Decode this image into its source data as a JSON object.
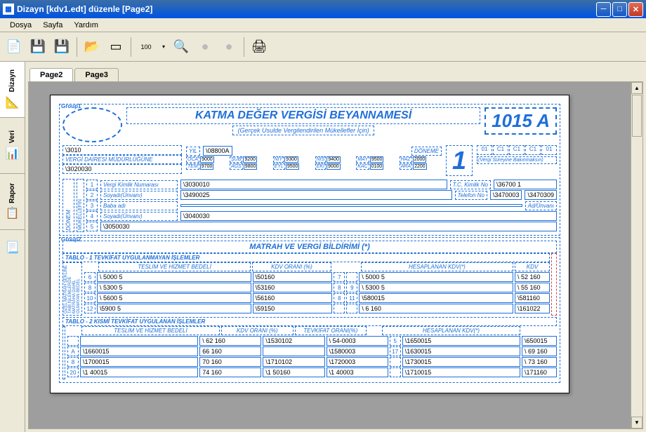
{
  "window": {
    "title": "Dizayn   [kdv1.edt]   düzenle [Page2]"
  },
  "menu": {
    "dosya": "Dosya",
    "sayfa": "Sayfa",
    "yardim": "Yardım"
  },
  "vtabs": {
    "dizayn": "Dizayn",
    "veri": "Veri",
    "rapor": "Rapor"
  },
  "ptabs": {
    "page2": "Page2",
    "page3": "Page3"
  },
  "form": {
    "group1": "Group1",
    "group2": "Group2",
    "title": "KATMA DEĞER VERGİSİ BEYANNAMESİ",
    "subtitle": "(Gerçek Usulde Vergilendirilen Mükellefler İçin)",
    "code": "1015 A",
    "big_number": "1",
    "period_boxes": [
      "01",
      "C1",
      "C1",
      "C1",
      "01"
    ],
    "period_note": "(Vergi Süreyine Bakınmaksın)",
    "vdm_label": "VERGİ DAİRESİ MÜDÜRLÜĞÜNE",
    "vdm_val1": "\\3010",
    "vdm_val2": "\\3020030",
    "yil_label": "YIL",
    "yil_val": "\\08800A",
    "donem_label": "DÖNEME",
    "month_grid": [
      {
        "l": "OCA",
        "v": "9000"
      },
      {
        "l": "ŞUB",
        "v": "9200"
      },
      {
        "l": "NİY",
        "v": "9300"
      },
      {
        "l": "NİS",
        "v": "9400"
      },
      {
        "l": "MAY",
        "v": "9500"
      },
      {
        "l": "HAZ",
        "v": "2000"
      },
      {
        "l": "TEM",
        "v": "9700"
      },
      {
        "l": "AĞS",
        "v": "9800"
      },
      {
        "l": "EYL",
        "v": "9500"
      },
      {
        "l": "EKİ",
        "v": "9000"
      },
      {
        "l": "KAC",
        "v": "0100"
      },
      {
        "l": "ARA",
        "v": "2200"
      }
    ],
    "mukellef": {
      "side_label": "MÜKELLEFİN",
      "rows": [
        {
          "n": "1",
          "label": "Vergi Kimlik Numarası",
          "val": "\\3030010",
          "extra_label": "T.C. Kimlik No",
          "extra_val": "\\36700  1"
        },
        {
          "n": "2",
          "label": "Soyadı(Ünvanı)",
          "val": "\\3490025",
          "extra_label": "Telefon No",
          "extra_vals": [
            "\\3470003",
            "\\3470309"
          ]
        },
        {
          "n": "3",
          "label": "Baba adı",
          "val": "",
          "extra_label": "Ad/Ünvanı",
          "extra_val": ""
        },
        {
          "n": "4",
          "label": "Soyadı(Ünvanı)",
          "val": "\\3040030"
        },
        {
          "n": "5",
          "label": "",
          "val": "\\3050030"
        }
      ],
      "donem_label": "DÖNEM"
    },
    "matrah": {
      "title": "MATRAH VE VERGİ BİLDİRİMİ (*)",
      "tablo1_title": "TABLO - 1   TEVKİFAT UYGULANMAYAN İŞLEMLER",
      "tablo2_title": "TABLO - 2   KISMİ TEVKİFAT UYGULANAN İŞLEMLER",
      "col_teslim": "TESLİM VE HİZMET BEDELİ",
      "col_kdv_oran": "KDV ORANI (%)",
      "col_hesap_kdv": "HESAPLANAN KDV(*)",
      "col_tevkifat": "TEVKİFAT ORANI(%)",
      "tablo1_rows": [
        {
          "n": "6",
          "bedel": "\\ 5000  5",
          "oran": "\\50160",
          "n2": "7",
          "kdv": "\\ 5000  5",
          "kdv2": "\\ 52 160"
        },
        {
          "n": "8",
          "bedel": "\\ 5300  5",
          "oran": "\\53160",
          "n2": "8",
          "n3": "9",
          "kdv": "\\ 5300  5",
          "kdv2": "\\ 55 160"
        },
        {
          "n": "10",
          "bedel": "\\ 5600  5",
          "oran": "\\56160",
          "n2": "8",
          "n3": "11",
          "kdv": "\\580015",
          "kdv2": "\\581160"
        },
        {
          "n": "12",
          "bedel": "\\5900  5",
          "oran": "\\59150",
          "n2": "",
          "n3": "",
          "kdv": "\\ 6 160",
          "kdv2": "\\161022"
        }
      ],
      "tablo2_rows": [
        {
          "n": "",
          "bedel": "",
          "oran": "\\ 62 160",
          "tev": "\\1530102",
          "tn": "\\ 54-0003",
          "n2": "5",
          "kdv": "\\1650015",
          "kdv2": "\\650015"
        },
        {
          "n": "A",
          "bedel": "\\1660015",
          "oran": "66 160",
          "tev": "",
          "tn": "\\1580003",
          "n2": "17",
          "kdv": "\\1630015",
          "kdv2": "\\ 69 160"
        },
        {
          "n": "8",
          "bedel": "\\1700015",
          "oran": "70 160",
          "tev": "\\1710102",
          "tn": "\\1720003",
          "n2": "",
          "kdv": "\\1730015",
          "kdv2": "\\ 73 160"
        },
        {
          "n": "20",
          "bedel": "\\1  40015",
          "oran": "74 160",
          "tev": "\\1 50160",
          "tn": "\\1 40003",
          "n2": "",
          "kdv": "\\1710015",
          "kdv2": "\\171160"
        }
      ],
      "side_label1": "ÖZEL MATRAH ŞEKLİNE TABİ İŞLEMLERDE MATRAHA DAHİL OLMAYAN BEDEL",
      "kdv_label": "KDV"
    }
  }
}
